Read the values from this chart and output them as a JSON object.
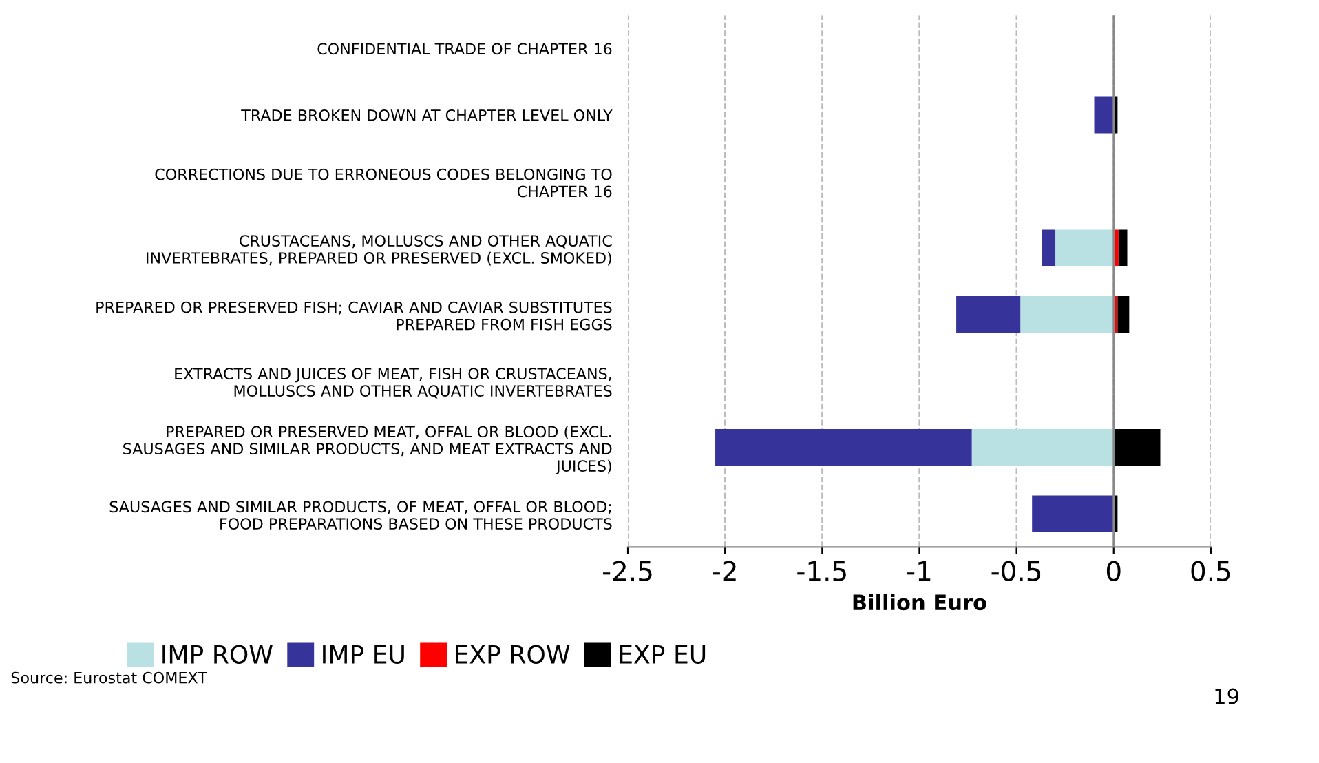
{
  "chart_data": {
    "type": "bar",
    "orientation": "horizontal",
    "stacked": true,
    "xlabel": "Billion Euro",
    "categories": [
      "CONFIDENTIAL TRADE OF CHAPTER 16",
      "TRADE BROKEN DOWN AT CHAPTER LEVEL ONLY",
      "CORRECTIONS DUE TO ERRONEOUS CODES BELONGING TO\nCHAPTER 16",
      "CRUSTACEANS, MOLLUSCS AND OTHER AQUATIC\nINVERTEBRATES, PREPARED OR PRESERVED (EXCL. SMOKED)",
      "PREPARED OR PRESERVED FISH; CAVIAR AND CAVIAR SUBSTITUTES\nPREPARED FROM FISH EGGS",
      "EXTRACTS AND JUICES OF MEAT, FISH OR CRUSTACEANS,\nMOLLUSCS AND OTHER AQUATIC INVERTEBRATES",
      "PREPARED OR PRESERVED MEAT, OFFAL OR BLOOD (EXCL.\nSAUSAGES AND SIMILAR PRODUCTS, AND MEAT EXTRACTS AND\nJUICES)",
      "SAUSAGES AND SIMILAR PRODUCTS, OF MEAT, OFFAL OR BLOOD;\nFOOD PREPARATIONS BASED ON THESE PRODUCTS"
    ],
    "series": [
      {
        "name": "IMP ROW",
        "color": "#b9e0e3",
        "values": [
          null,
          null,
          null,
          -0.3,
          -0.48,
          null,
          -0.73,
          null
        ]
      },
      {
        "name": "IMP EU",
        "color": "#36349a",
        "values": [
          null,
          -0.1,
          null,
          -0.07,
          -0.33,
          null,
          -1.32,
          -0.42
        ]
      },
      {
        "name": "EXP ROW",
        "color": "#ff0000",
        "values": [
          null,
          null,
          null,
          0.025,
          0.02,
          null,
          null,
          null
        ]
      },
      {
        "name": "EXP EU",
        "color": "#000000",
        "values": [
          null,
          0.02,
          null,
          0.045,
          0.06,
          null,
          0.24,
          0.02
        ]
      }
    ],
    "xlim": [
      -2.5,
      0.5
    ],
    "xticks": [
      -2.5,
      -2,
      -1.5,
      -1,
      -0.5,
      0,
      0.5
    ],
    "grid": "x",
    "legend": "bottom left",
    "annotations": [
      "Source: Eurostat COMEXT",
      "19"
    ]
  }
}
